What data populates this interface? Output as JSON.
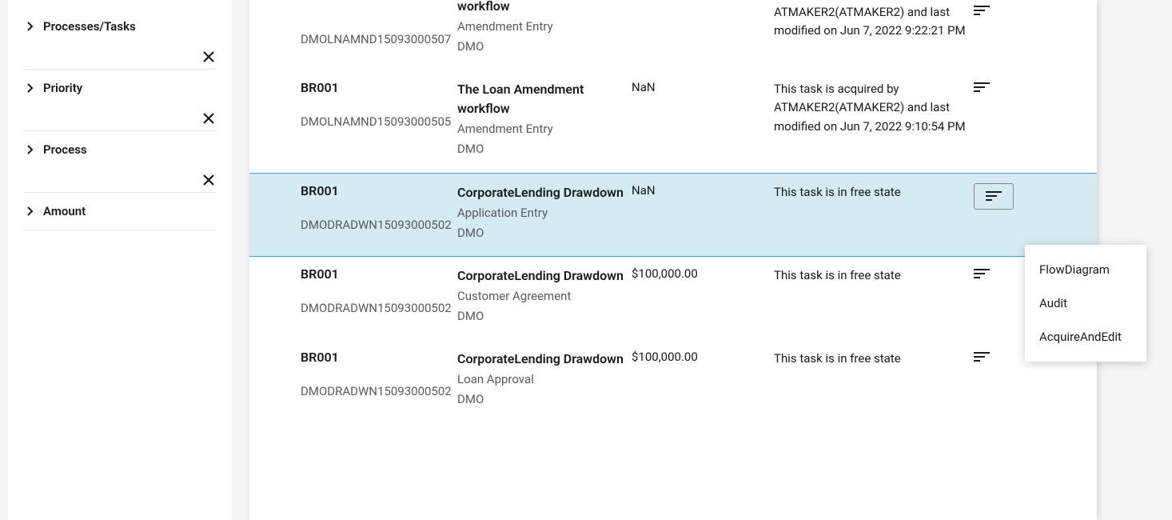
{
  "sidebar": {
    "filters": [
      {
        "label": "Processes/Tasks",
        "has_close": true
      },
      {
        "label": "Priority",
        "has_close": true
      },
      {
        "label": "Process",
        "has_close": true
      },
      {
        "label": "Amount",
        "has_close": false
      }
    ]
  },
  "rows": [
    {
      "branch": "",
      "refno": "DMOLNAMND15093000507",
      "workflow": "workflow",
      "stage": "Amendment Entry",
      "org": "DMO",
      "amount": "",
      "status": "ATMAKER2(ATMAKER2) and last modified on Jun 7, 2022 9:22:21 PM",
      "selected": false,
      "partial_top": true
    },
    {
      "branch": "BR001",
      "refno": "DMOLNAMND15093000505",
      "workflow": "The Loan Amendment workflow",
      "stage": "Amendment Entry",
      "org": "DMO",
      "amount": "NaN",
      "status": "This task is acquired by ATMAKER2(ATMAKER2) and last modified on Jun 7, 2022 9:10:54 PM",
      "selected": false
    },
    {
      "branch": "BR001",
      "refno": "DMODRADWN15093000502",
      "workflow": "CorporateLending Drawdown",
      "stage": "Application Entry",
      "org": "DMO",
      "amount": "NaN",
      "status": "This task is in free state",
      "selected": true
    },
    {
      "branch": "BR001",
      "refno": "DMODRADWN15093000502",
      "workflow": "CorporateLending Drawdown",
      "stage": "Customer Agreement",
      "org": "DMO",
      "amount": "$100,000.00",
      "status": "This task is in free state",
      "selected": false
    },
    {
      "branch": "BR001",
      "refno": "DMODRADWN15093000502",
      "workflow": "CorporateLending Drawdown",
      "stage": "Loan Approval",
      "org": "DMO",
      "amount": "$100,000.00",
      "status": "This task is in free state",
      "selected": false
    }
  ],
  "popup": {
    "items": [
      "FlowDiagram",
      "Audit",
      "AcquireAndEdit"
    ]
  },
  "colors": {
    "selected_bg": "#d5ebf3",
    "selected_border": "#5b9bd5",
    "text_primary": "#1a1a1a",
    "text_secondary": "#5a5a5a"
  }
}
